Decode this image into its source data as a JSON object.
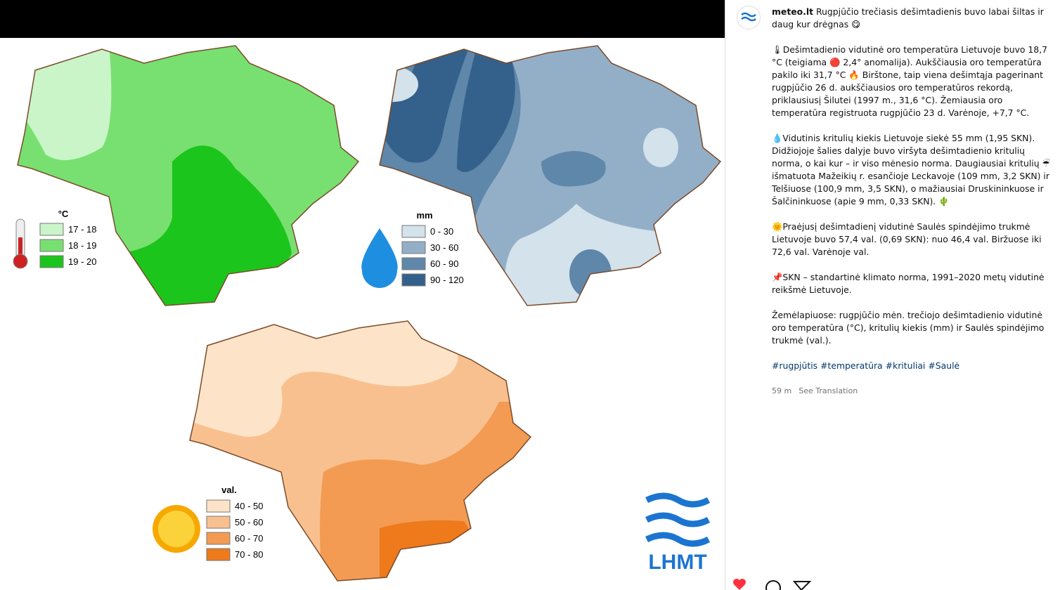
{
  "post": {
    "image": {
      "maps": [
        {
          "unit": "°C",
          "legend": [
            {
              "label": "17 - 18",
              "color": "#c9f5c9"
            },
            {
              "label": "18 - 19",
              "color": "#78e070"
            },
            {
              "label": "19 - 20",
              "color": "#1cc51c"
            }
          ]
        },
        {
          "unit": "mm",
          "legend": [
            {
              "label": "0 - 30",
              "color": "#d3e2eb"
            },
            {
              "label": "30 - 60",
              "color": "#93afc8"
            },
            {
              "label": "60 - 90",
              "color": "#5f87aa"
            },
            {
              "label": "90 - 120",
              "color": "#34618b"
            }
          ]
        },
        {
          "unit": "val.",
          "legend": [
            {
              "label": "40 - 50",
              "color": "#fde4c8"
            },
            {
              "label": "50 - 60",
              "color": "#f9c08f"
            },
            {
              "label": "60 - 70",
              "color": "#f39b53"
            },
            {
              "label": "70 - 80",
              "color": "#ee7a1c"
            }
          ]
        }
      ],
      "logo": "LHMT"
    },
    "caption": {
      "username": "meteo.lt",
      "title": "Rugpjūčio trečiasis dešimtadienis buvo labai šiltas ir daug kur drėgnas 😋",
      "paragraphs": [
        "🌡Dešimtadienio vidutinė oro temperatūra Lietuvoje buvo 18,7 °C (teigiama 🔴 2,4° anomalija). Aukščiausia oro temperatūra pakilo iki 31,7 °C 🔥 Birštone, taip viena dešimtąja pagerinant rugpjūčio 26 d. aukščiausios oro temperatūros rekordą, priklausiusį Šilutei (1997 m., 31,6 °C). Žemiausia oro temperatūra registruota rugpjūčio 23 d. Varėnoje, +7,7 °C.",
        "💧Vidutinis kritulių kiekis Lietuvoje siekė 55 mm (1,95 SKN). Didžiojoje šalies dalyje buvo viršyta dešimtadienio kritulių norma, o kai kur – ir viso mėnesio norma. Daugiausiai kritulių ☔ išmatuota Mažeikių r. esančioje Leckavoje (109 mm, 3,2 SKN) ir Telšiuose (100,9 mm, 3,5 SKN), o mažiausiai Druskininkuose ir Šalčininkuose (apie 9 mm, 0,33 SKN). 🌵",
        "🌞Praėjusį dešimtadienį vidutinė Saulės spindėjimo trukmė Lietuvoje buvo 57,4 val. (0,69 SKN): nuo 46,4 val. Biržuose iki 72,6 val. Varėnoje val.",
        "📌SKN – standartinė klimato norma, 1991–2020 metų vidutinė reikšmė Lietuvoje.",
        "Žemėlapiuose: rugpjūčio mėn. trečiojo dešimtadienio vidutinė oro temperatūra (°C), kritulių kiekis (mm) ir Saulės spindėjimo trukmė (val.)."
      ]
    },
    "hashtags": [
      "#rugpjūtis",
      "#temperatūra",
      "#krituliai",
      "#Saulė"
    ],
    "time": "59 m",
    "translate": "See Translation"
  }
}
